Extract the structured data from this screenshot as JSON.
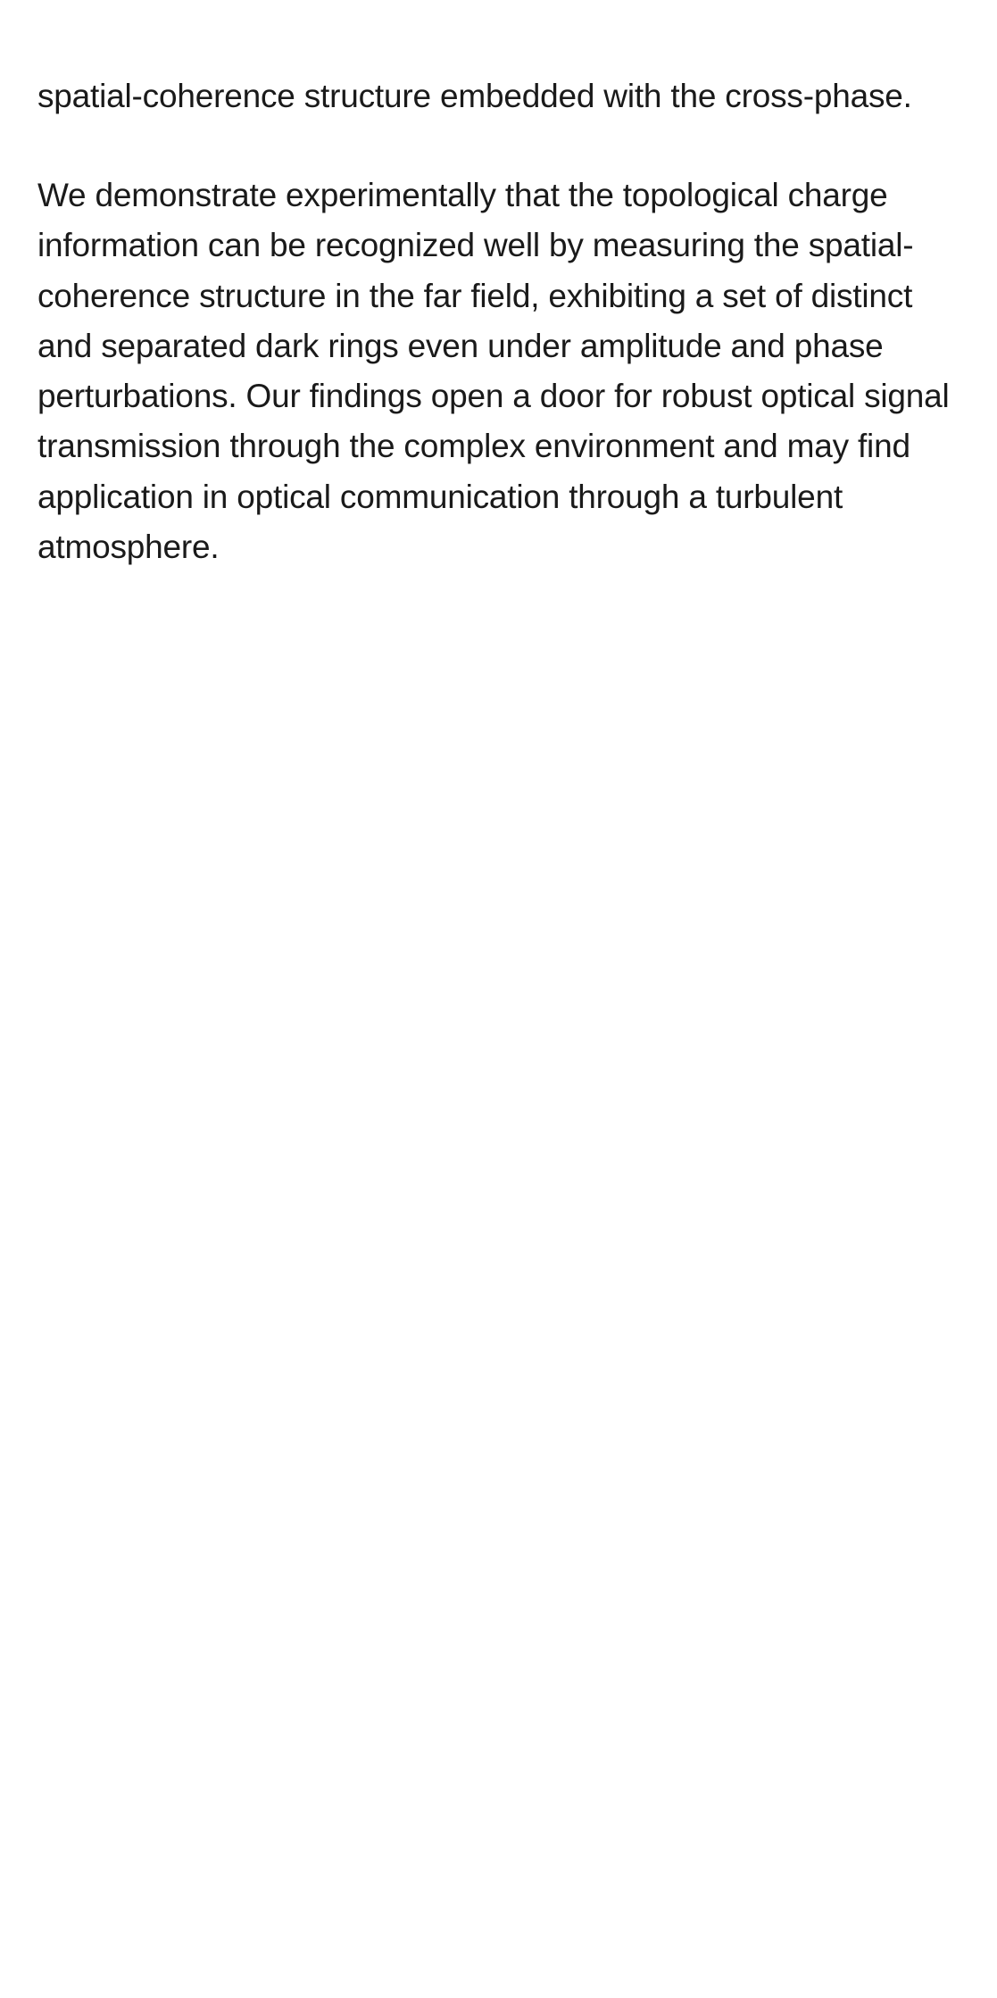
{
  "paragraphs": [
    "spatial-coherence structure embedded with the cross-phase.",
    "We demonstrate experimentally that the topological charge information can be recognized well by measuring the spatial-coherence structure in the far field, exhibiting a set of distinct and separated dark rings even under amplitude and phase perturbations. Our findings open a door for robust optical signal transmission through the complex environment and may find application in optical communication through a turbulent atmosphere."
  ]
}
